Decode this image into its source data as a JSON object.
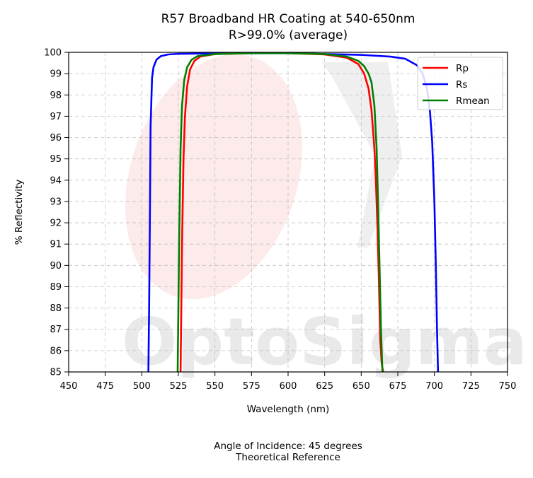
{
  "chart_data": {
    "type": "line",
    "title": "R57 Broadband HR Coating at 540-650nm",
    "subtitle": "R>99.0% (average)",
    "xlabel": "Wavelength (nm)",
    "ylabel": "% Reflectivity",
    "xlim": [
      450,
      750
    ],
    "ylim": [
      85,
      100
    ],
    "xticks": [
      450,
      475,
      500,
      525,
      550,
      575,
      600,
      625,
      650,
      675,
      700,
      725,
      750
    ],
    "yticks": [
      85,
      86,
      87,
      88,
      89,
      90,
      91,
      92,
      93,
      94,
      95,
      96,
      97,
      98,
      99,
      100
    ],
    "grid": true,
    "legend_position": "top-right",
    "footer": [
      "Angle of Incidence: 45 degrees",
      "Theoretical Reference"
    ],
    "watermark": "OptoSigma",
    "series": [
      {
        "name": "Rp",
        "color": "#ff0000",
        "x": [
          526.5,
          527.5,
          528.5,
          529.5,
          531,
          533,
          536,
          540,
          550,
          575,
          600,
          625,
          640,
          648,
          652,
          655,
          657,
          659,
          660,
          661,
          662,
          663,
          664,
          665
        ],
        "y": [
          85,
          91,
          95,
          97,
          98.4,
          99.2,
          99.6,
          99.8,
          99.92,
          99.96,
          99.96,
          99.9,
          99.75,
          99.45,
          99.0,
          98.3,
          97.3,
          95.5,
          94.0,
          92.0,
          89.5,
          86.5,
          85.4,
          85
        ]
      },
      {
        "name": "Rs",
        "color": "#0000ff",
        "x": [
          504.5,
          505,
          505.5,
          506,
          507,
          508,
          510,
          513,
          518,
          525,
          550,
          600,
          650,
          670,
          680,
          688,
          692,
          695,
          697,
          698.5,
          700,
          701,
          701.8,
          702.5
        ],
        "y": [
          85,
          88,
          92,
          96.5,
          98.8,
          99.3,
          99.65,
          99.82,
          99.9,
          99.93,
          99.95,
          99.96,
          99.88,
          99.8,
          99.7,
          99.4,
          99.0,
          98.3,
          97.2,
          95.8,
          93.0,
          90.0,
          87.0,
          85
        ]
      },
      {
        "name": "Rmean",
        "color": "#008000",
        "x": [
          524.5,
          525.5,
          526.5,
          527.5,
          529,
          531,
          534,
          538,
          550,
          575,
          600,
          625,
          640,
          648,
          652,
          655,
          657,
          659,
          660.5,
          661.5,
          662.5,
          663.5,
          664.5
        ],
        "y": [
          85,
          91,
          95.5,
          97.5,
          98.7,
          99.3,
          99.65,
          99.82,
          99.92,
          99.96,
          99.96,
          99.92,
          99.8,
          99.6,
          99.35,
          99.0,
          98.6,
          97.5,
          95.5,
          93.0,
          90.0,
          87.0,
          85
        ]
      }
    ]
  }
}
